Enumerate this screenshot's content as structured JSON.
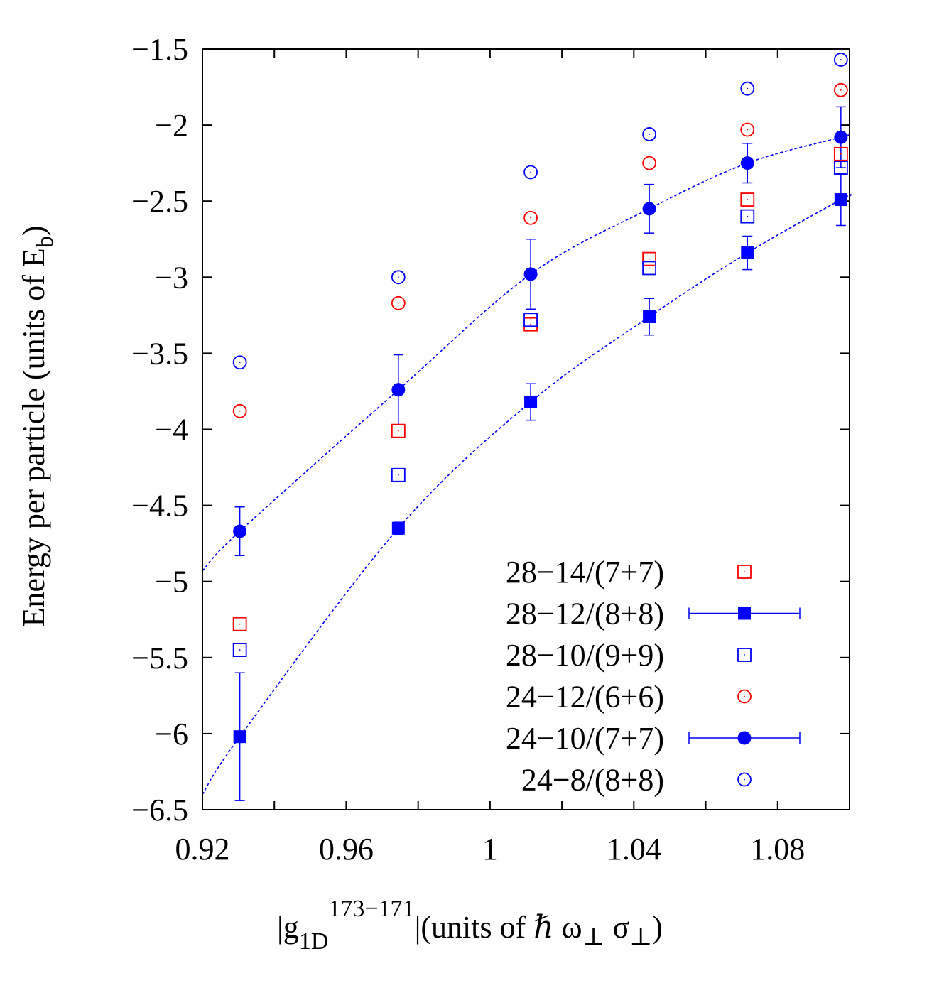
{
  "chart_data": {
    "type": "scatter",
    "title": "",
    "xlabel": {
      "pre": "|g",
      "sub1": "1D",
      "sup": "173−171",
      "mid": "|(units of ",
      "hbar": "ℏ",
      "omega": " ω",
      "sigma": " σ",
      "perp": "⊥",
      "post": ")"
    },
    "ylabel": {
      "main": "Energy per particle (units of E",
      "sub": "b",
      "post": ")"
    },
    "xlim": [
      0.92,
      1.1
    ],
    "ylim": [
      -6.5,
      -1.5
    ],
    "xticks": [
      0.92,
      0.94,
      0.96,
      0.98,
      1.0,
      1.02,
      1.04,
      1.06,
      1.08
    ],
    "xtick_labels": [
      {
        "v": 0.92,
        "label": "0.92"
      },
      {
        "v": 0.96,
        "label": "0.96"
      },
      {
        "v": 1.0,
        "label": "1"
      },
      {
        "v": 1.04,
        "label": "1.04"
      },
      {
        "v": 1.08,
        "label": "1.08"
      }
    ],
    "yticks": [
      {
        "v": -1.5,
        "label": "−1.5"
      },
      {
        "v": -2,
        "label": "−2"
      },
      {
        "v": -2.5,
        "label": "−2.5"
      },
      {
        "v": -3,
        "label": "−3"
      },
      {
        "v": -3.5,
        "label": "−3.5"
      },
      {
        "v": -4,
        "label": "−4"
      },
      {
        "v": -4.5,
        "label": "−4.5"
      },
      {
        "v": -5,
        "label": "−5"
      },
      {
        "v": -5.5,
        "label": "−5.5"
      },
      {
        "v": -6,
        "label": "−6"
      },
      {
        "v": -6.5,
        "label": "−6.5"
      }
    ],
    "grid": false,
    "legend_position": "bottom-right",
    "x": [
      0.9304,
      0.9745,
      1.0113,
      1.0443,
      1.0716,
      1.0976
    ],
    "series": [
      {
        "name": "28−14/(7+7)",
        "marker": "square-open",
        "color": "#ff0000",
        "values": [
          -5.28,
          -4.01,
          -3.31,
          -2.88,
          -2.49,
          -2.19
        ]
      },
      {
        "name": "28−12/(8+8)",
        "marker": "square-filled",
        "color": "#0000ff",
        "errorbars": true,
        "values": [
          -6.02,
          -4.65,
          -3.82,
          -3.26,
          -2.84,
          -2.49
        ],
        "errors": [
          0.42,
          0.04,
          0.12,
          0.12,
          0.11,
          0.17
        ]
      },
      {
        "name": "28−10/(9+9)",
        "marker": "square-open",
        "color": "#0000ff",
        "values": [
          -5.45,
          -4.3,
          -3.28,
          -2.94,
          -2.6,
          -2.28
        ]
      },
      {
        "name": "24−12/(6+6)",
        "marker": "circle-open",
        "color": "#ff0000",
        "values": [
          -3.88,
          -3.17,
          -2.61,
          -2.25,
          -2.03,
          -1.77
        ]
      },
      {
        "name": "24−10/(7+7)",
        "marker": "circle-filled",
        "color": "#0000ff",
        "errorbars": true,
        "values": [
          -4.67,
          -3.74,
          -2.98,
          -2.55,
          -2.25,
          -2.08
        ],
        "errors": [
          0.16,
          0.23,
          0.23,
          0.16,
          0.13,
          0.2
        ]
      },
      {
        "name": "24−8/(8+8)",
        "marker": "circle-open",
        "color": "#0000ff",
        "values": [
          -3.56,
          -3.0,
          -2.31,
          -2.06,
          -1.76,
          -1.57
        ]
      }
    ],
    "fits": [
      {
        "color": "#0000ff",
        "style": "dashed",
        "x": [
          0.92,
          0.9304,
          0.9745,
          1.0113,
          1.0443,
          1.0716,
          1.0976,
          1.1
        ],
        "y": [
          -4.93,
          -4.67,
          -3.74,
          -2.98,
          -2.55,
          -2.25,
          -2.08,
          -2.06
        ]
      },
      {
        "color": "#0000ff",
        "style": "dashed",
        "x": [
          0.92,
          0.9304,
          0.9745,
          1.0113,
          1.0443,
          1.0716,
          1.0976,
          1.1
        ],
        "y": [
          -6.4,
          -6.02,
          -4.65,
          -3.82,
          -3.26,
          -2.84,
          -2.49,
          -2.47
        ]
      }
    ]
  }
}
